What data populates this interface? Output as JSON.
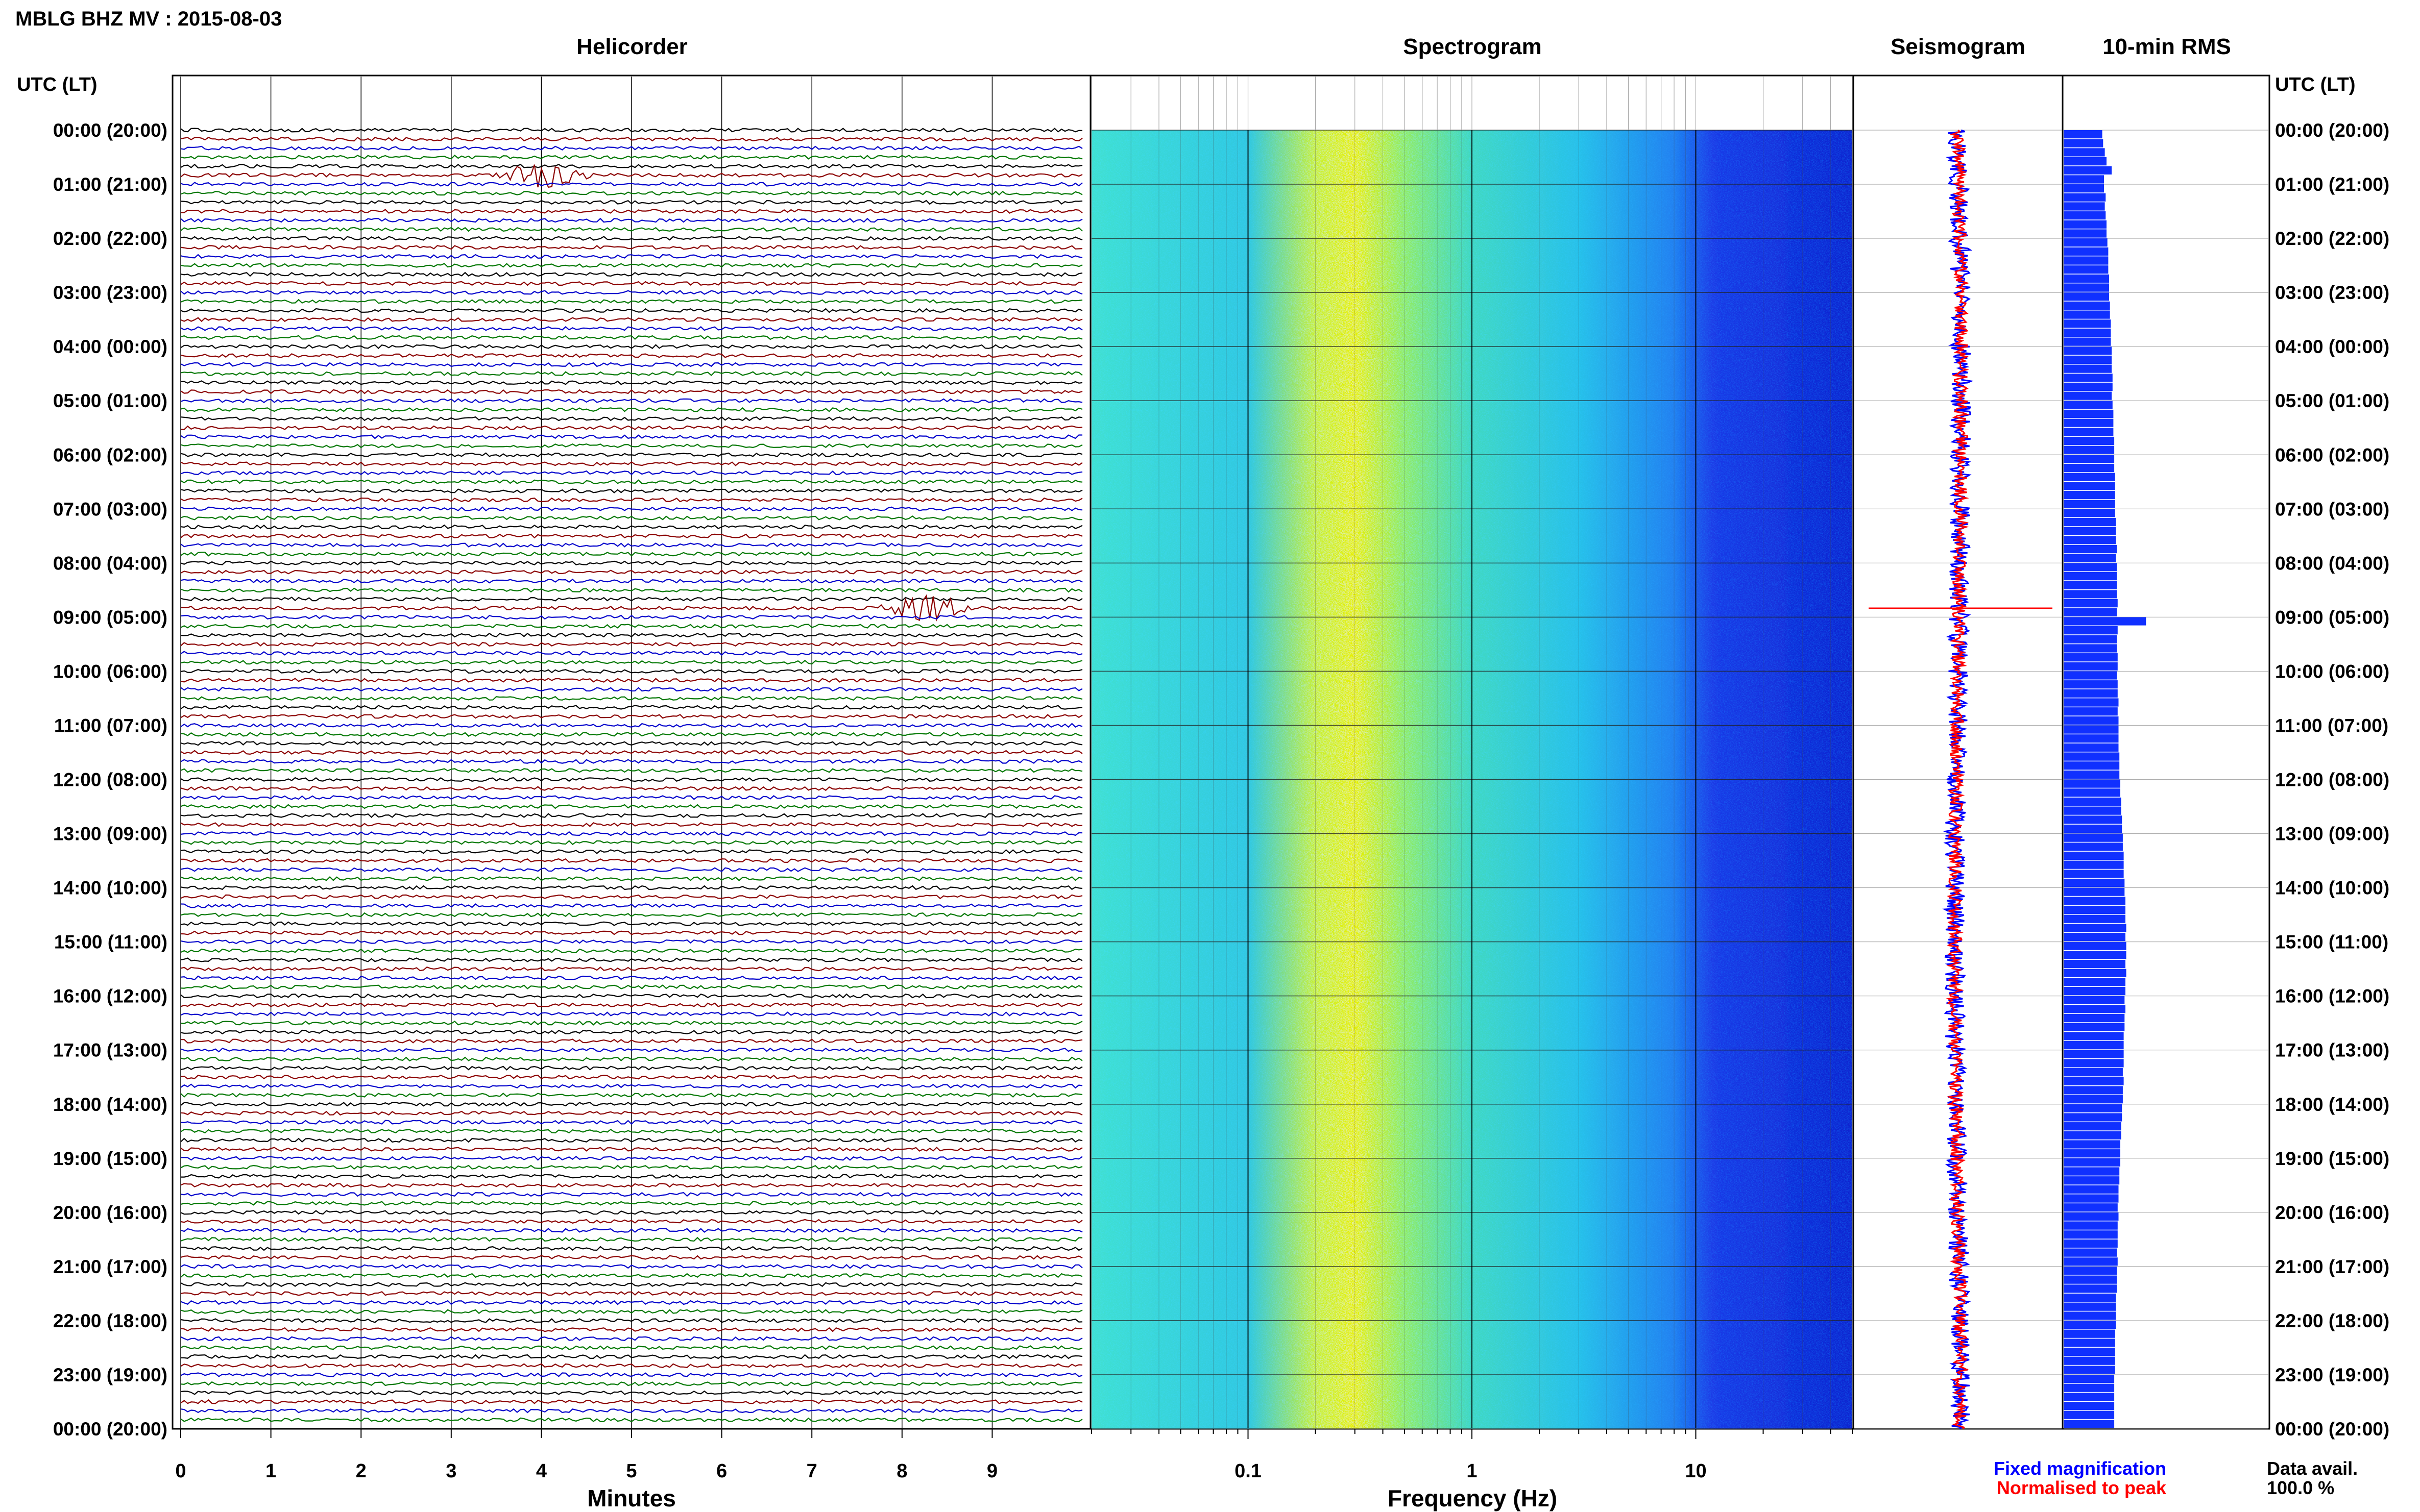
{
  "title": "MBLG BHZ MV : 2015-08-03",
  "axis_left_label": "UTC (LT)",
  "axis_right_label": "UTC (LT)",
  "colors": {
    "trace_cycle": [
      "#000000",
      "#8b0000",
      "#0000cc",
      "#007700"
    ],
    "spectrogram_low": "#1a3ae6",
    "spectrogram_mid": "#40e0d0",
    "spectrogram_high": "#e6f000",
    "seismogram_fixed": "#0000ff",
    "seismogram_normalised": "#ff0000",
    "rms_bar": "#1030ff"
  },
  "chart_data": [
    {
      "type": "line",
      "title": "Helicorder",
      "xlabel": "Minutes",
      "x_ticks": [
        "0",
        "1",
        "2",
        "3",
        "4",
        "5",
        "6",
        "7",
        "8",
        "9"
      ],
      "xlim": [
        0,
        10
      ],
      "rows": 144,
      "row_interval_minutes": 10,
      "y_ticks": [
        "00:00 (20:00)",
        "01:00 (21:00)",
        "02:00 (22:00)",
        "03:00 (23:00)",
        "04:00 (00:00)",
        "05:00 (01:00)",
        "06:00 (02:00)",
        "07:00 (03:00)",
        "08:00 (04:00)",
        "09:00 (05:00)",
        "10:00 (06:00)",
        "11:00 (07:00)",
        "12:00 (08:00)",
        "13:00 (09:00)",
        "14:00 (10:00)",
        "15:00 (11:00)",
        "16:00 (12:00)",
        "17:00 (13:00)",
        "18:00 (14:00)",
        "19:00 (15:00)",
        "20:00 (16:00)",
        "21:00 (17:00)",
        "22:00 (18:00)",
        "23:00 (19:00)",
        "00:00 (20:00)"
      ],
      "events": [
        {
          "row_utc": "00:50",
          "minute": 4.0
        },
        {
          "row_utc": "08:50",
          "minute": 8.3
        }
      ]
    },
    {
      "type": "heatmap",
      "title": "Spectrogram",
      "xlabel": "Frequency (Hz)",
      "x_scale": "log",
      "xlim": [
        0.02,
        50
      ],
      "x_ticks": [
        "0.1",
        "1",
        "10"
      ],
      "x_tick_values": [
        0.1,
        1,
        10
      ],
      "dominant_band_hz": [
        0.2,
        0.5
      ]
    },
    {
      "type": "line",
      "title": "Seismogram"
    },
    {
      "type": "bar",
      "title": "10-min RMS",
      "values": [
        0.45,
        0.46,
        0.48,
        0.5,
        0.56,
        0.47,
        0.47,
        0.49,
        0.48,
        0.49,
        0.5,
        0.5,
        0.51,
        0.52,
        0.52,
        0.52,
        0.53,
        0.53,
        0.53,
        0.54,
        0.54,
        0.55,
        0.55,
        0.55,
        0.56,
        0.56,
        0.56,
        0.57,
        0.57,
        0.56,
        0.57,
        0.58,
        0.58,
        0.58,
        0.59,
        0.59,
        0.59,
        0.59,
        0.6,
        0.6,
        0.6,
        0.6,
        0.6,
        0.61,
        0.61,
        0.61,
        0.62,
        0.61,
        0.62,
        0.62,
        0.62,
        0.62,
        0.63,
        0.62,
        0.96,
        0.63,
        0.62,
        0.62,
        0.63,
        0.63,
        0.62,
        0.63,
        0.63,
        0.64,
        0.63,
        0.64,
        0.64,
        0.64,
        0.64,
        0.65,
        0.65,
        0.65,
        0.66,
        0.66,
        0.67,
        0.67,
        0.68,
        0.68,
        0.69,
        0.69,
        0.7,
        0.7,
        0.7,
        0.71,
        0.71,
        0.72,
        0.72,
        0.72,
        0.73,
        0.72,
        0.73,
        0.73,
        0.72,
        0.73,
        0.72,
        0.72,
        0.71,
        0.72,
        0.71,
        0.71,
        0.7,
        0.7,
        0.7,
        0.7,
        0.69,
        0.7,
        0.69,
        0.69,
        0.68,
        0.68,
        0.67,
        0.67,
        0.66,
        0.66,
        0.66,
        0.65,
        0.65,
        0.64,
        0.64,
        0.63,
        0.64,
        0.63,
        0.63,
        0.63,
        0.62,
        0.63,
        0.62,
        0.62,
        0.62,
        0.61,
        0.61,
        0.61,
        0.61,
        0.6,
        0.6,
        0.6,
        0.6,
        0.6,
        0.59,
        0.59,
        0.59,
        0.59,
        0.59,
        0.59
      ]
    }
  ],
  "legend": {
    "fixed": "Fixed magnification",
    "normalised": "Normalised to peak"
  },
  "data_availability": {
    "label": "Data avail.",
    "value": "100.0 %"
  }
}
